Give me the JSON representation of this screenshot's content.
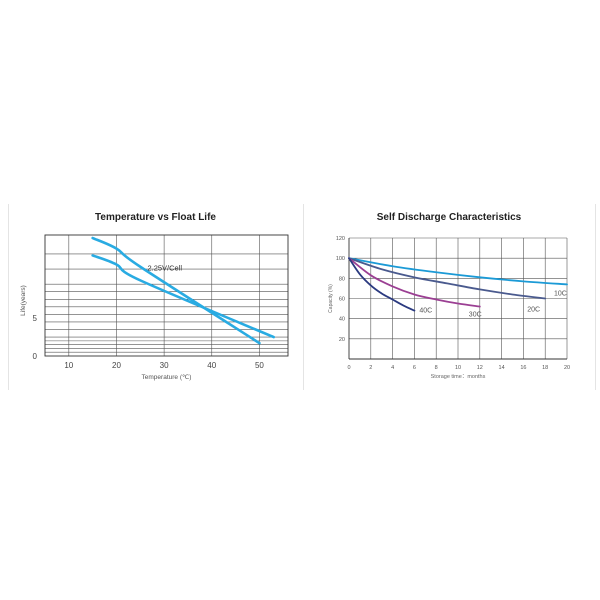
{
  "chart_data": [
    {
      "type": "line",
      "title": "Temperature vs Float Life",
      "xlabel": "Temperature (℃)",
      "ylabel": "Life(years)",
      "x_ticks": [
        "10",
        "20",
        "30",
        "40",
        "50"
      ],
      "y_ticks": [
        "0",
        "5"
      ],
      "xlim": [
        5,
        56
      ],
      "ylim": [
        0,
        16
      ],
      "grid": true,
      "annotations": [
        "2.25V/Cell"
      ],
      "series": [
        {
          "name": "2.25V/Cell",
          "color": "#29abe2",
          "x": [
            15,
            20,
            25,
            50
          ],
          "y": [
            15.6,
            14.2,
            11.8,
            1.7
          ]
        },
        {
          "name": "",
          "color": "#29abe2",
          "x": [
            15,
            20,
            25,
            53
          ],
          "y": [
            13.3,
            12.1,
            10.0,
            2.5
          ]
        }
      ]
    },
    {
      "type": "line",
      "title": "Self Discharge Characteristics",
      "xlabel": "Storage time：months",
      "ylabel": "Capacity (%)",
      "x_ticks": [
        "0",
        "2",
        "4",
        "6",
        "8",
        "10",
        "12",
        "14",
        "16",
        "18",
        "20"
      ],
      "y_ticks": [
        "20",
        "40",
        "60",
        "80",
        "100",
        "120"
      ],
      "xlim": [
        0,
        20
      ],
      "ylim": [
        0,
        120
      ],
      "grid": true,
      "series": [
        {
          "name": "10C",
          "color": "#1b9ad6",
          "x": [
            0,
            4,
            8,
            12,
            16,
            20
          ],
          "y": [
            100,
            92,
            86,
            81,
            77,
            74
          ]
        },
        {
          "name": "20C",
          "color": "#4a5a8e",
          "x": [
            0,
            3,
            6,
            9,
            12,
            15,
            18
          ],
          "y": [
            100,
            89,
            81,
            75,
            69,
            64,
            60
          ]
        },
        {
          "name": "30C",
          "color": "#9b3f93",
          "x": [
            0,
            2,
            4,
            6,
            8,
            10,
            12
          ],
          "y": [
            100,
            83,
            72,
            64,
            59,
            55,
            52
          ]
        },
        {
          "name": "40C",
          "color": "#2b3a80",
          "x": [
            0,
            1,
            2,
            3,
            4,
            5,
            6
          ],
          "y": [
            100,
            84,
            73,
            65,
            59,
            53,
            48
          ]
        }
      ]
    }
  ]
}
